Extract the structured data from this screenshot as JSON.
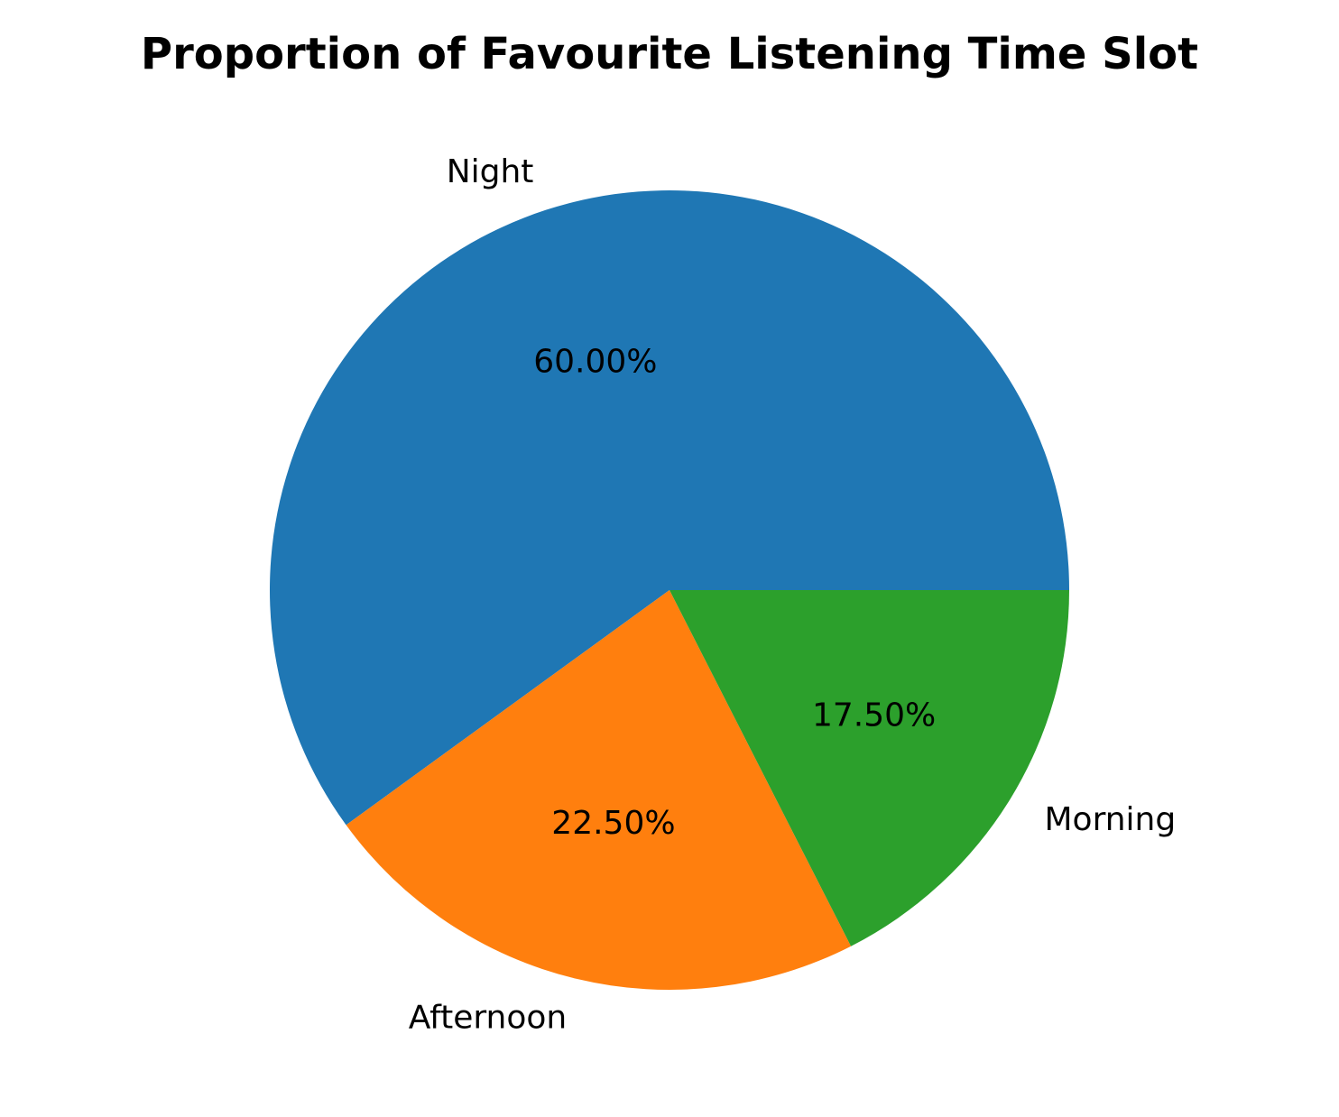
{
  "chart_data": {
    "type": "pie",
    "title": "Proportion of Favourite Listening Time Slot",
    "slices": [
      {
        "label": "Night",
        "value": 60.0,
        "pct_label": "60.00%",
        "color": "#1f77b4"
      },
      {
        "label": "Afternoon",
        "value": 22.5,
        "pct_label": "22.50%",
        "color": "#ff7f0e"
      },
      {
        "label": "Morning",
        "value": 17.5,
        "pct_label": "17.50%",
        "color": "#2ca02c"
      }
    ],
    "start_angle_deg": 0,
    "direction": "counterclockwise",
    "legend": "none"
  }
}
